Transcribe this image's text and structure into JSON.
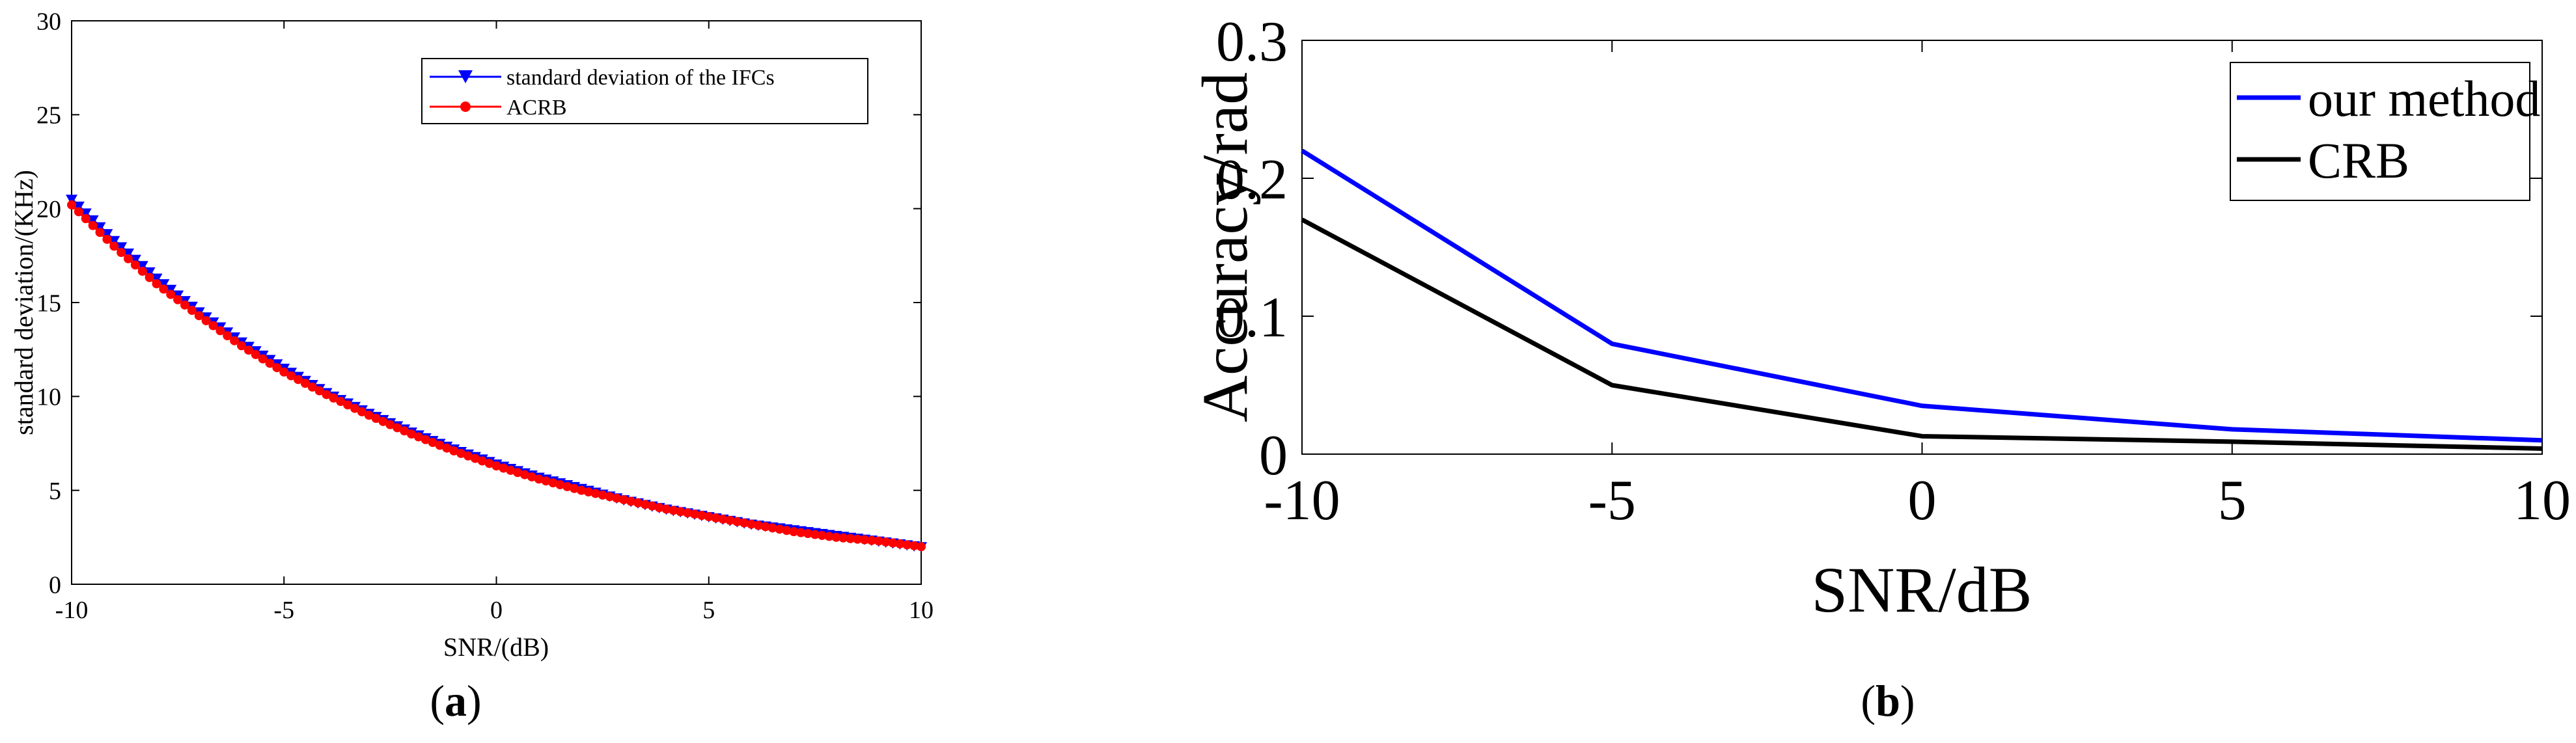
{
  "chart_data": [
    {
      "type": "line",
      "panel_label": "a",
      "xlabel": "SNR/(dB)",
      "ylabel": "standard deviation/(KHz)",
      "xlim": [
        -10,
        10
      ],
      "ylim": [
        0,
        30
      ],
      "xticks": [
        "-10",
        "-5",
        "0",
        "5",
        "10"
      ],
      "yticks": [
        "0",
        "5",
        "10",
        "15",
        "20",
        "25",
        "30"
      ],
      "legend_position": "top-right",
      "grid": false,
      "series": [
        {
          "name": "standard deviation of the IFCs",
          "color": "#0000ff",
          "marker": "triangle-down",
          "x": [
            -10,
            -9,
            -8,
            -7,
            -6,
            -5,
            -4,
            -3,
            -2,
            -1,
            0,
            1,
            2,
            3,
            4,
            5,
            6,
            7,
            8,
            9,
            10
          ],
          "values": [
            20.5,
            18.3,
            16.3,
            14.5,
            12.9,
            11.5,
            10.2,
            9.1,
            8.1,
            7.2,
            6.4,
            5.7,
            5.1,
            4.5,
            4.0,
            3.6,
            3.2,
            2.9,
            2.6,
            2.3,
            2.0
          ]
        },
        {
          "name": "ACRB",
          "color": "#ff0000",
          "marker": "dot",
          "x": [
            -10,
            -9,
            -8,
            -7,
            -6,
            -5,
            -4,
            -3,
            -2,
            -1,
            0,
            1,
            2,
            3,
            4,
            5,
            6,
            7,
            8,
            9,
            10
          ],
          "values": [
            20.2,
            18.0,
            16.0,
            14.3,
            12.7,
            11.3,
            10.1,
            9.0,
            8.0,
            7.1,
            6.3,
            5.6,
            5.0,
            4.5,
            4.0,
            3.6,
            3.2,
            2.8,
            2.5,
            2.3,
            2.0
          ]
        }
      ]
    },
    {
      "type": "line",
      "panel_label": "b",
      "xlabel": "SNR/dB",
      "ylabel": "Accuracy/rad",
      "xlim": [
        -10,
        10
      ],
      "ylim": [
        0,
        0.3
      ],
      "xticks": [
        "-10",
        "-5",
        "0",
        "5",
        "10"
      ],
      "yticks": [
        "0",
        "0.1",
        "0.2",
        "0.3"
      ],
      "legend_position": "top-right",
      "grid": false,
      "series": [
        {
          "name": "our method",
          "color": "#0000ff",
          "x": [
            -10,
            -5,
            0,
            5,
            10
          ],
          "values": [
            0.22,
            0.08,
            0.035,
            0.018,
            0.01
          ]
        },
        {
          "name": "CRB",
          "color": "#000000",
          "x": [
            -10,
            -5,
            0,
            5,
            10
          ],
          "values": [
            0.17,
            0.05,
            0.013,
            0.009,
            0.004
          ]
        }
      ]
    }
  ]
}
